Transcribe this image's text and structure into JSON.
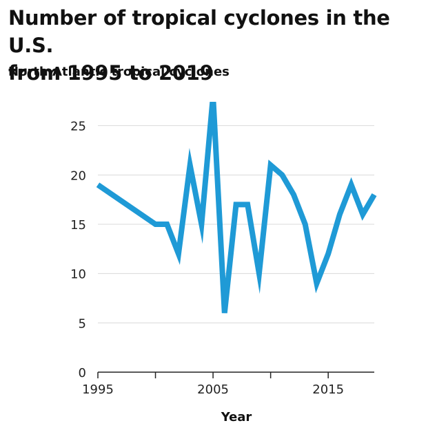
{
  "title_lines": [
    "Number of tropical cyclones in the U.S.",
    "from 1995 to 2019"
  ],
  "subtitle": "North Atlantic tropical cyclones",
  "colors": {
    "line": "#1f9ad6",
    "grid": "#d9d9d9",
    "axis": "#222222"
  },
  "chart_data": {
    "type": "line",
    "title": "Number of tropical cyclones in the U.S. from 1995 to 2019",
    "subtitle": "North Atlantic tropical cyclones",
    "xlabel": "Year",
    "ylabel": "",
    "xlim": [
      1995,
      2019
    ],
    "ylim": [
      0,
      27
    ],
    "x_ticks": [
      1995,
      2000,
      2005,
      2010,
      2015
    ],
    "x_tick_labels": [
      "1995",
      "",
      "2005",
      "",
      "2015"
    ],
    "y_ticks": [
      0,
      5,
      10,
      15,
      20,
      25
    ],
    "grid": true,
    "legend": "none",
    "series": [
      {
        "x": [
          1995,
          2000,
          2001,
          2002,
          2003,
          2004,
          2005,
          2006,
          2007,
          2008,
          2009,
          2010,
          2011,
          2012,
          2013,
          2014,
          2015,
          2016,
          2017,
          2018,
          2019
        ],
        "values": [
          19,
          15,
          15,
          12,
          21,
          15,
          28,
          6,
          17,
          17,
          10,
          21,
          20,
          18,
          15,
          9,
          12,
          16,
          19,
          16,
          18
        ]
      }
    ]
  }
}
